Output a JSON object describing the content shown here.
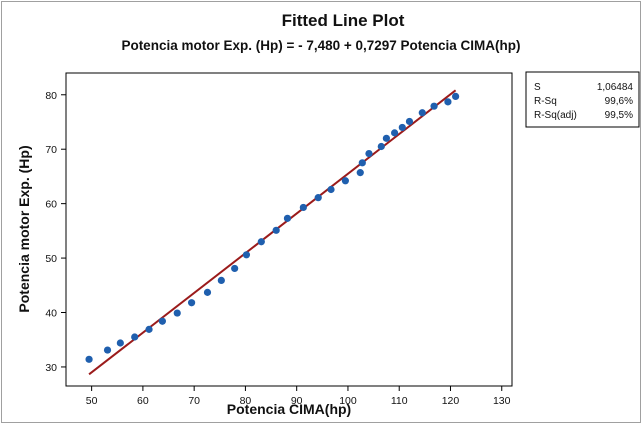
{
  "chart_data": {
    "type": "scatter",
    "title": "Fitted Line Plot",
    "subtitle": "Potencia motor Exp. (Hp) = - 7,480 + 0,7297 Potencia CIMA(hp)",
    "xlabel": "Potencia CIMA(hp)",
    "ylabel": "Potencia motor Exp. (Hp)",
    "xlim": [
      45,
      132
    ],
    "ylim": [
      26.5,
      84
    ],
    "x_ticks": [
      50,
      60,
      70,
      80,
      90,
      100,
      110,
      120,
      130
    ],
    "y_ticks": [
      30,
      40,
      50,
      60,
      70,
      80
    ],
    "x_tick_labels": [
      "50",
      "60",
      "70",
      "80",
      "90",
      "100",
      "110",
      "120",
      "130"
    ],
    "y_tick_labels": [
      "30",
      "40",
      "50",
      "60",
      "70",
      "80"
    ],
    "points": [
      {
        "x": 49.5,
        "y": 31.4
      },
      {
        "x": 53.1,
        "y": 33.1
      },
      {
        "x": 55.6,
        "y": 34.4
      },
      {
        "x": 58.4,
        "y": 35.5
      },
      {
        "x": 61.2,
        "y": 36.9
      },
      {
        "x": 63.8,
        "y": 38.4
      },
      {
        "x": 66.7,
        "y": 39.9
      },
      {
        "x": 69.5,
        "y": 41.8
      },
      {
        "x": 72.6,
        "y": 43.7
      },
      {
        "x": 75.3,
        "y": 45.9
      },
      {
        "x": 77.9,
        "y": 48.1
      },
      {
        "x": 80.2,
        "y": 50.6
      },
      {
        "x": 83.1,
        "y": 53.0
      },
      {
        "x": 86.0,
        "y": 55.1
      },
      {
        "x": 88.2,
        "y": 57.3
      },
      {
        "x": 91.3,
        "y": 59.3
      },
      {
        "x": 94.2,
        "y": 61.1
      },
      {
        "x": 96.7,
        "y": 62.6
      },
      {
        "x": 99.5,
        "y": 64.2
      },
      {
        "x": 102.4,
        "y": 65.7
      },
      {
        "x": 102.8,
        "y": 67.5
      },
      {
        "x": 104.1,
        "y": 69.2
      },
      {
        "x": 106.5,
        "y": 70.5
      },
      {
        "x": 107.5,
        "y": 72.0
      },
      {
        "x": 109.1,
        "y": 73.0
      },
      {
        "x": 110.6,
        "y": 74.0
      },
      {
        "x": 112.0,
        "y": 75.1
      },
      {
        "x": 114.5,
        "y": 76.7
      },
      {
        "x": 116.8,
        "y": 77.9
      },
      {
        "x": 119.5,
        "y": 78.7
      },
      {
        "x": 121.0,
        "y": 79.7
      }
    ],
    "fit_line": {
      "intercept": -7.48,
      "slope": 0.7297,
      "x_range": [
        49.5,
        121.0
      ]
    },
    "grid": false,
    "legend": "none",
    "colors": {
      "points": "#1f5fae",
      "fit_line": "#9b1b1b"
    }
  },
  "stats_box": {
    "rows": [
      {
        "label": "S",
        "value": "1,06484"
      },
      {
        "label": "R-Sq",
        "value": "99,6%"
      },
      {
        "label": "R-Sq(adj)",
        "value": "99,5%"
      }
    ],
    "placement": "top-right"
  }
}
